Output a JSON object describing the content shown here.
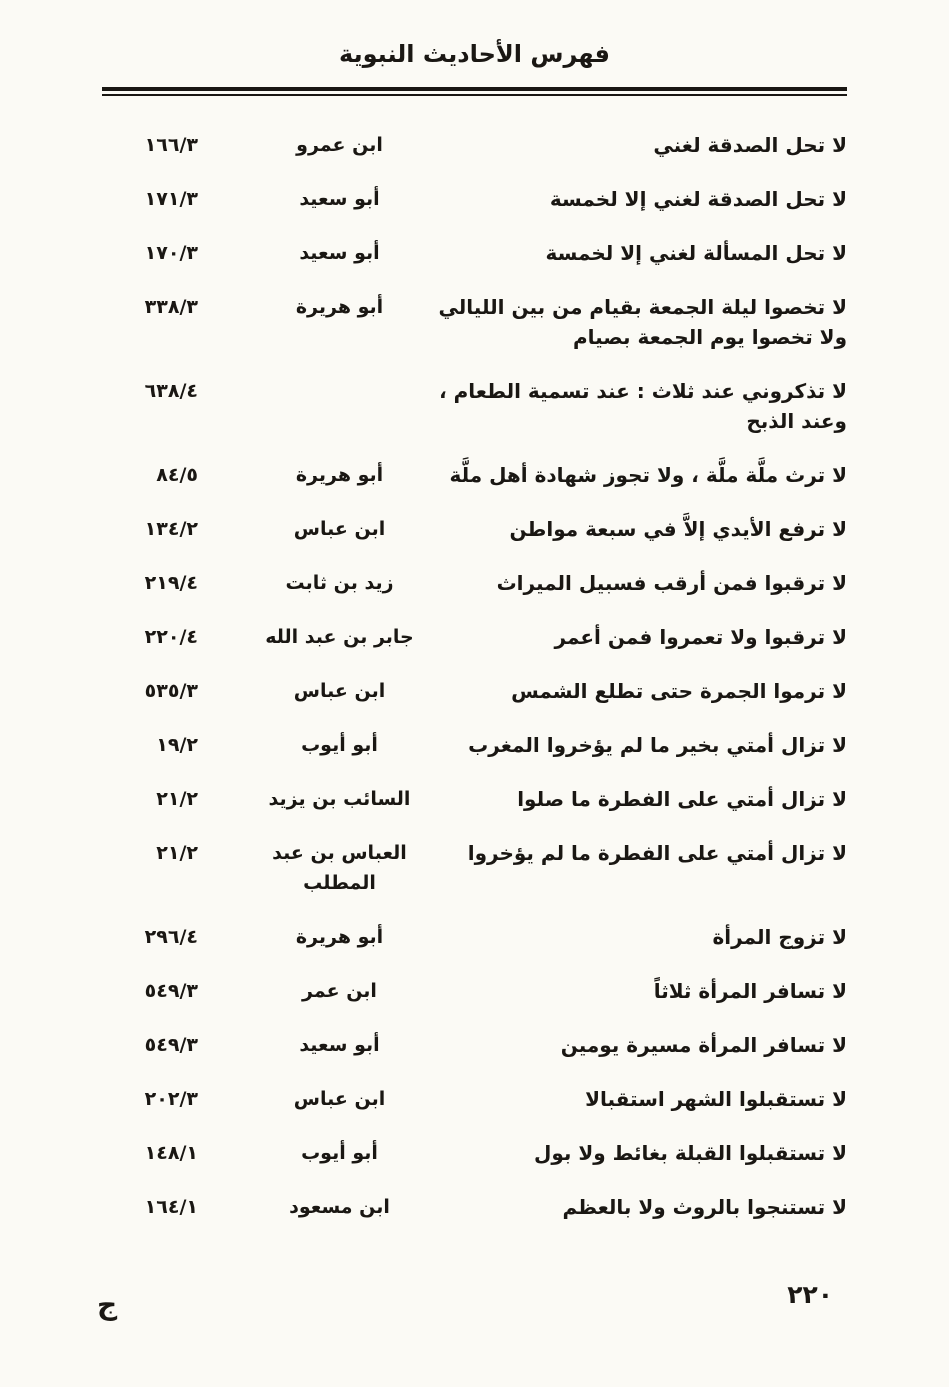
{
  "page": {
    "title": "فهرس الأحاديث النبوية",
    "page_number": "٢٢٠",
    "catchword": "ج"
  },
  "index": {
    "rows": [
      {
        "hadith": "لا تحل الصدقة لغني",
        "narrator": "ابن عمرو",
        "ref": "١٦٦/٣"
      },
      {
        "hadith": "لا تحل الصدقة لغني إلا لخمسة",
        "narrator": "أبو سعيد",
        "ref": "١٧١/٣"
      },
      {
        "hadith": "لا تحل المسألة لغني إلا لخمسة",
        "narrator": "أبو سعيد",
        "ref": "١٧٠/٣"
      },
      {
        "hadith": "لا تخصوا ليلة الجمعة بقيام من بين الليالي ولا تخصوا يوم الجمعة بصيام",
        "narrator": "أبو هريرة",
        "ref": "٣٣٨/٣"
      },
      {
        "hadith": "لا تذكروني عند ثلاث : عند تسمية الطعام ، وعند الذبح",
        "narrator": "",
        "ref": "٦٣٨/٤"
      },
      {
        "hadith": "لا ترث ملَّة ملَّة ، ولا تجوز شهادة أهل ملَّة",
        "narrator": "أبو هريرة",
        "ref": "٨٤/٥"
      },
      {
        "hadith": "لا ترفع الأيدي إلاَّ في سبعة مواطن",
        "narrator": "ابن عباس",
        "ref": "١٣٤/٢"
      },
      {
        "hadith": "لا ترقبوا فمن أرقب فسبيل الميراث",
        "narrator": "زيد بن ثابت",
        "ref": "٢١٩/٤"
      },
      {
        "hadith": "لا ترقبوا ولا تعمروا فمن أعمر",
        "narrator": "جابر بن عبد الله",
        "ref": "٢٢٠/٤"
      },
      {
        "hadith": "لا ترموا الجمرة حتى تطلع الشمس",
        "narrator": "ابن عباس",
        "ref": "٥٣٥/٣"
      },
      {
        "hadith": "لا تزال أمتي بخير ما لم يؤخروا المغرب",
        "narrator": "أبو أيوب",
        "ref": "١٩/٢"
      },
      {
        "hadith": "لا تزال أمتي على الفطرة ما صلوا",
        "narrator": "السائب بن يزيد",
        "ref": "٢١/٢"
      },
      {
        "hadith": "لا تزال أمتي على الفطرة ما لم يؤخروا",
        "narrator": "العباس بن عبد المطلب",
        "ref": "٢١/٢"
      },
      {
        "hadith": "لا تزوج المرأة",
        "narrator": "أبو هريرة",
        "ref": "٢٩٦/٤"
      },
      {
        "hadith": "لا تسافر المرأة ثلاثاً",
        "narrator": "ابن عمر",
        "ref": "٥٤٩/٣"
      },
      {
        "hadith": "لا تسافر المرأة مسيرة يومين",
        "narrator": "أبو سعيد",
        "ref": "٥٤٩/٣"
      },
      {
        "hadith": "لا تستقبلوا الشهر استقبالا",
        "narrator": "ابن عباس",
        "ref": "٢٠٢/٣"
      },
      {
        "hadith": "لا تستقبلوا القبلة بغائط ولا بول",
        "narrator": "أبو أيوب",
        "ref": "١٤٨/١"
      },
      {
        "hadith": "لا تستنجوا بالروث ولا بالعظم",
        "narrator": "ابن مسعود",
        "ref": "١٦٤/١"
      }
    ]
  }
}
